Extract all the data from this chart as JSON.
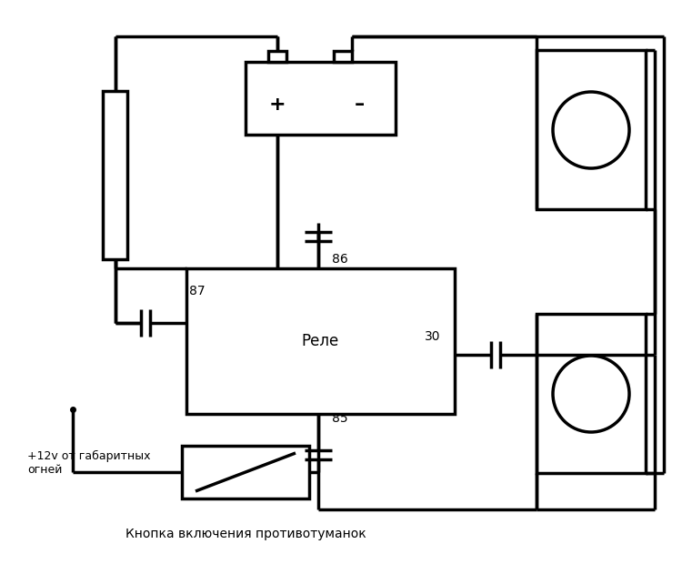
{
  "title": "",
  "bg_color": "#ffffff",
  "line_color": "#000000",
  "line_width": 2.5,
  "label_12v": "+12v от габаритных\nогней",
  "label_button": "Кнопка включения противотуманок",
  "label_relay": "Реле",
  "label_86": "86",
  "label_87": "87",
  "label_85": "85",
  "label_30": "30",
  "label_plus": "+",
  "label_minus": "–"
}
